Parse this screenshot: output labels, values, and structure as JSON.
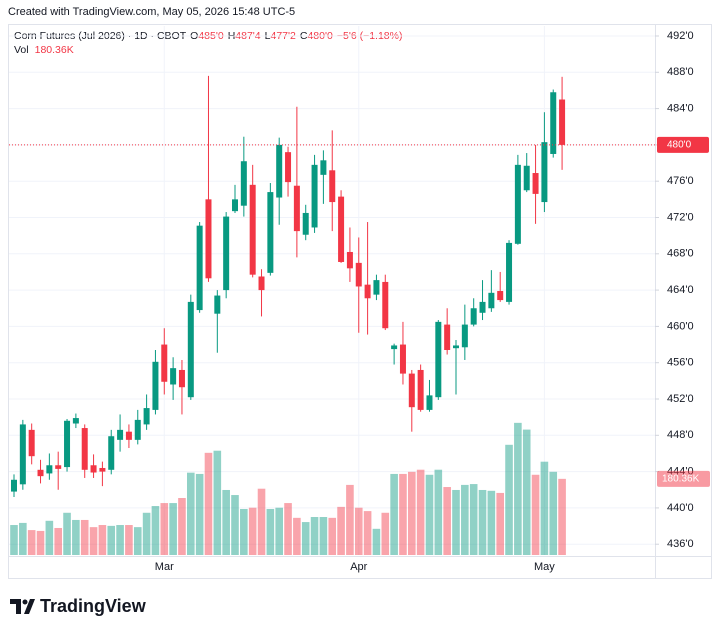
{
  "header": {
    "created": "Created with TradingView.com, May 05, 2026 15:48 UTC-5"
  },
  "legend": {
    "symbol": "Corn Futures (Jul 2026) · 1D · CBOT",
    "ohlc": [
      {
        "key": "O",
        "value": "485'0"
      },
      {
        "key": "H",
        "value": "487'4"
      },
      {
        "key": "L",
        "value": "477'2"
      },
      {
        "key": "C",
        "value": "480'0"
      }
    ],
    "change": "−5'6 (−1.18%)",
    "volume_key": "Vol"
  },
  "footer": {
    "brand": "TradingView"
  },
  "chart_data": {
    "type": "candlestick",
    "categories": [
      null,
      null,
      null,
      null,
      null,
      null,
      null,
      null,
      null,
      null,
      null,
      null,
      null,
      null,
      null,
      null,
      null,
      "Mar",
      null,
      null,
      null,
      null,
      null,
      null,
      null,
      null,
      null,
      null,
      null,
      null,
      null,
      null,
      null,
      null,
      null,
      null,
      null,
      null,
      null,
      "Apr",
      null,
      null,
      null,
      null,
      null,
      null,
      null,
      null,
      null,
      null,
      null,
      null,
      null,
      null,
      null,
      null,
      null,
      null,
      null,
      null,
      "May",
      null,
      null
    ],
    "open": [
      441.8,
      442.6,
      448.6,
      444.2,
      443.8,
      444.7,
      444.5,
      449.3,
      448.8,
      444.7,
      444.4,
      444.2,
      447.5,
      448.4,
      447.5,
      449.2,
      450.8,
      458.0,
      453.6,
      455.2,
      452.2,
      461.8,
      474.0,
      461.4,
      464.0,
      472.7,
      473.3,
      475.6,
      465.5,
      465.9,
      474.2,
      479.2,
      475.5,
      470.1,
      470.9,
      476.7,
      477.2,
      474.3,
      468.2,
      467.0,
      464.6,
      463.5,
      464.9,
      457.5,
      458.0,
      454.8,
      455.2,
      450.8,
      452.2,
      460.2,
      457.6,
      457.7,
      460.2,
      461.5,
      462.0,
      463.9,
      462.7,
      469.1,
      475.0,
      476.9,
      473.7,
      479.0,
      485.0
    ],
    "high": [
      443.7,
      449.7,
      449.3,
      445.3,
      446.0,
      446.2,
      449.8,
      450.4,
      449.2,
      445.9,
      445.1,
      448.6,
      450.3,
      449.2,
      450.8,
      452.5,
      457.4,
      459.8,
      456.6,
      456.3,
      463.5,
      471.5,
      487.6,
      464.0,
      472.6,
      475.6,
      480.9,
      477.8,
      466.3,
      475.8,
      480.8,
      479.8,
      484.2,
      473.4,
      478.9,
      479.4,
      481.6,
      475.0,
      470.9,
      469.8,
      471.5,
      465.7,
      465.7,
      458.1,
      460.5,
      455.2,
      455.8,
      454.1,
      460.7,
      462.0,
      458.5,
      462.4,
      463.1,
      465.1,
      466.2,
      466.0,
      469.5,
      478.9,
      479.1,
      480.0,
      483.6,
      486.1,
      487.5
    ],
    "low": [
      441.2,
      442.0,
      444.8,
      442.7,
      443.1,
      442.0,
      444.0,
      448.8,
      443.3,
      443.3,
      442.4,
      443.7,
      446.2,
      446.6,
      447.0,
      448.6,
      450.3,
      452.5,
      451.9,
      450.3,
      451.9,
      461.5,
      464.9,
      457.1,
      463.1,
      472.5,
      472.1,
      465.4,
      461.1,
      465.6,
      471.2,
      474.3,
      467.6,
      469.5,
      470.3,
      473.5,
      470.5,
      467.0,
      464.9,
      459.3,
      459.1,
      462.9,
      459.6,
      455.8,
      453.6,
      448.4,
      450.6,
      450.6,
      451.9,
      456.9,
      452.5,
      456.3,
      460.0,
      460.7,
      461.6,
      462.7,
      462.4,
      469.0,
      474.8,
      471.3,
      472.6,
      478.6,
      477.25
    ],
    "close": [
      443.1,
      449.2,
      445.7,
      443.5,
      444.7,
      444.3,
      449.6,
      449.9,
      444.2,
      443.9,
      444.0,
      447.9,
      448.6,
      447.5,
      449.7,
      451.0,
      456.1,
      453.9,
      455.4,
      453.3,
      462.7,
      471.1,
      465.3,
      463.4,
      472.1,
      474.0,
      478.2,
      465.7,
      464.0,
      474.8,
      480.0,
      475.9,
      470.5,
      472.5,
      477.8,
      478.3,
      473.7,
      467.1,
      466.4,
      464.4,
      463.1,
      465.1,
      459.8,
      457.9,
      454.8,
      451.1,
      450.8,
      452.4,
      460.5,
      457.4,
      457.9,
      460.2,
      462.0,
      462.7,
      463.7,
      462.9,
      469.2,
      477.8,
      477.7,
      474.6,
      480.3,
      485.8,
      480.0
    ],
    "volume": [
      71,
      76,
      59,
      57,
      81,
      64,
      100,
      83,
      83,
      66,
      71,
      69,
      71,
      71,
      66,
      100,
      116,
      123,
      123,
      135,
      195,
      192,
      242,
      247,
      154,
      142,
      109,
      112,
      157,
      109,
      112,
      123,
      88,
      78,
      90,
      90,
      88,
      114,
      166,
      112,
      104,
      62,
      100,
      192,
      192,
      197,
      202,
      190,
      202,
      161,
      154,
      166,
      168,
      154,
      152,
      147,
      261,
      313,
      297,
      190,
      221,
      197,
      180.36
    ],
    "last_price": {
      "value": 480,
      "label": "480'0"
    },
    "last_volume": {
      "value": 180.36,
      "label": "180.36K"
    },
    "up_color": "#089981",
    "down_color": "#f23645",
    "ylim": [
      433.6,
      493.1
    ],
    "yticks": [
      {
        "value": 492,
        "label": "492'0"
      },
      {
        "value": 488,
        "label": "488'0"
      },
      {
        "value": 484,
        "label": "484'0"
      },
      {
        "value": 480,
        "label": "480'0"
      },
      {
        "value": 476,
        "label": "476'0"
      },
      {
        "value": 472,
        "label": "472'0"
      },
      {
        "value": 468,
        "label": "468'0"
      },
      {
        "value": 464,
        "label": "464'0"
      },
      {
        "value": 460,
        "label": "460'0"
      },
      {
        "value": 456,
        "label": "456'0"
      },
      {
        "value": 452,
        "label": "452'0"
      },
      {
        "value": 448,
        "label": "448'0"
      },
      {
        "value": 444,
        "label": "444'0"
      },
      {
        "value": 440,
        "label": "440'0"
      },
      {
        "value": 436,
        "label": "436'0"
      }
    ],
    "y2lim": [
      0,
      540
    ],
    "grid": true
  }
}
